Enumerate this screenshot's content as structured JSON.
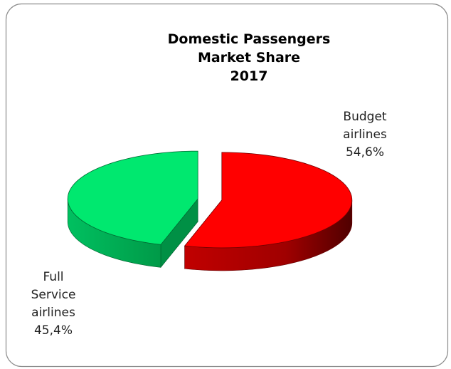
{
  "chart_data": {
    "type": "pie3d",
    "title": [
      "Domestic Passengers",
      "Market Share",
      "2017"
    ],
    "categories": [
      "Budget airlines",
      "Full Service airlines"
    ],
    "values": [
      54.6,
      45.4
    ],
    "value_labels": [
      "54,6%",
      "45,4%"
    ],
    "colors": [
      "#ff0000",
      "#00e86f"
    ]
  }
}
